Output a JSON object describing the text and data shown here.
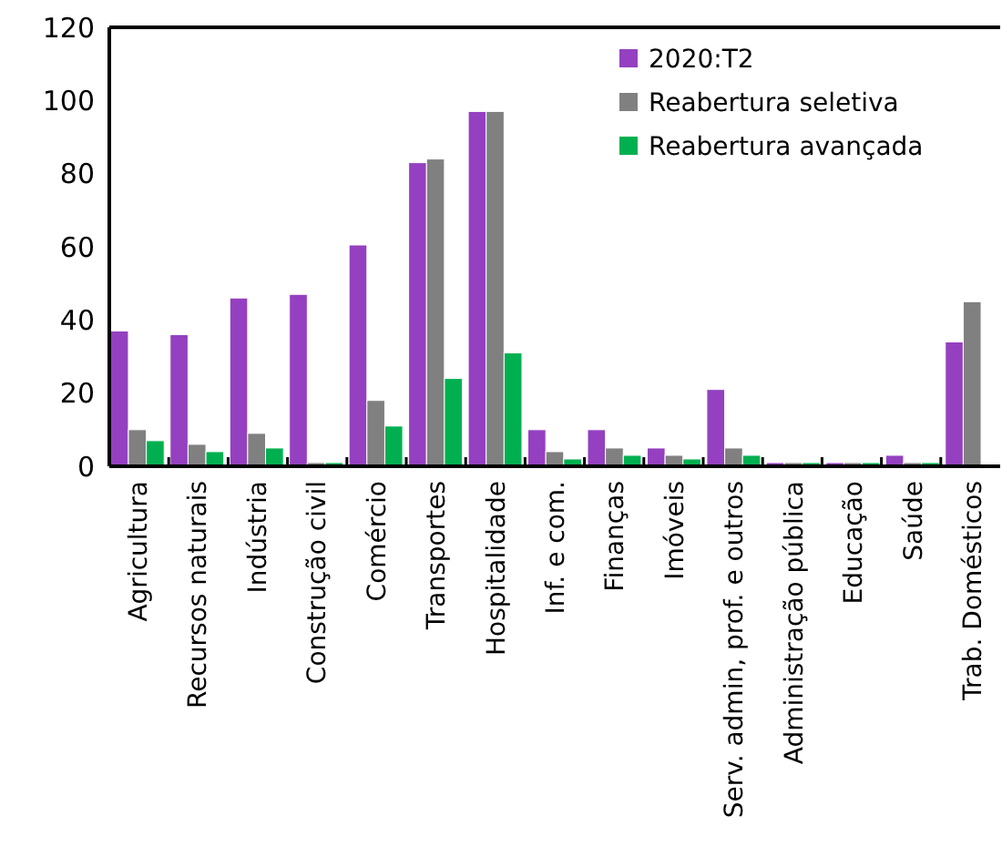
{
  "chart_data": {
    "type": "bar",
    "categories": [
      "Agricultura",
      "Recursos naturais",
      "Indústria",
      "Construção civil",
      "Comércio",
      "Transportes",
      "Hospitalidade",
      "Inf. e com.",
      "Finanças",
      "Imóveis",
      "Serv. admin, prof. e outros",
      "Administração pública",
      "Educação",
      "Saúde",
      "Trab. Domésticos"
    ],
    "series": [
      {
        "name": "2020:T2",
        "color": "#9440c0",
        "values": [
          37,
          36,
          46,
          47,
          60.5,
          83,
          97,
          10,
          10,
          5,
          21,
          1,
          1,
          3,
          34
        ]
      },
      {
        "name": "Reabertura seletiva",
        "color": "#808080",
        "values": [
          10,
          6,
          9,
          1,
          18,
          84,
          97,
          4,
          5,
          3,
          5,
          1,
          1,
          1,
          45
        ]
      },
      {
        "name": "Reabertura avançada",
        "color": "#00b050",
        "values": [
          7,
          4,
          5,
          1,
          11,
          24,
          31,
          2,
          3,
          2,
          3,
          1,
          1,
          1,
          null
        ]
      }
    ],
    "ylim": [
      0,
      120
    ],
    "yticks": [
      0,
      20,
      40,
      60,
      80,
      100,
      120
    ],
    "grid": false,
    "legend": "top right"
  }
}
